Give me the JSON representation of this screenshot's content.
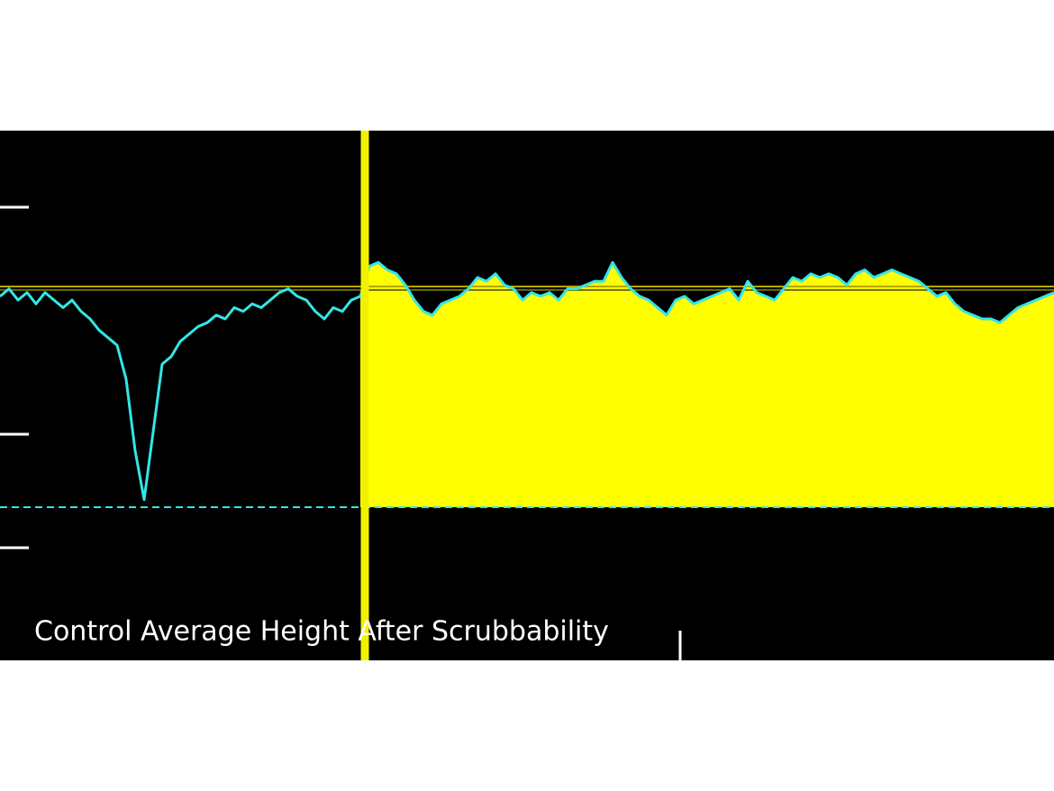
{
  "chart_data": {
    "type": "line",
    "title": "Control Average Height After Scrubbability",
    "values": [
      56,
      58,
      55,
      57,
      54,
      57,
      55,
      53,
      55,
      52,
      50,
      47,
      45,
      43,
      34,
      15,
      2,
      20,
      38,
      40,
      44,
      46,
      48,
      49,
      51,
      50,
      53,
      52,
      54,
      53,
      55,
      57,
      58,
      56,
      55,
      52,
      50,
      53,
      52,
      55,
      56,
      64,
      65,
      63,
      62,
      59,
      55,
      52,
      51,
      54,
      55,
      56,
      58,
      61,
      60,
      62,
      59,
      58,
      55,
      57,
      56,
      57,
      55,
      58,
      58,
      59,
      60,
      60,
      65,
      61,
      58,
      56,
      55,
      53,
      51,
      55,
      56,
      54,
      55,
      56,
      57,
      58,
      55,
      60,
      57,
      56,
      55,
      58,
      61,
      60,
      62,
      61,
      62,
      61,
      59,
      62,
      63,
      61,
      62,
      63,
      62,
      61,
      60,
      58,
      56,
      57,
      54,
      52,
      51,
      50,
      50,
      49,
      51,
      53,
      54,
      55,
      56,
      57
    ],
    "color": "#33e6e6",
    "fill_color": "#ffff00",
    "cursor_color": "#f2f200",
    "ylim": [
      0,
      100
    ],
    "reference_lines": [
      {
        "value": 58.6,
        "color": "#b5a600"
      },
      {
        "value": 57.7,
        "color": "#6b6b00"
      }
    ]
  }
}
